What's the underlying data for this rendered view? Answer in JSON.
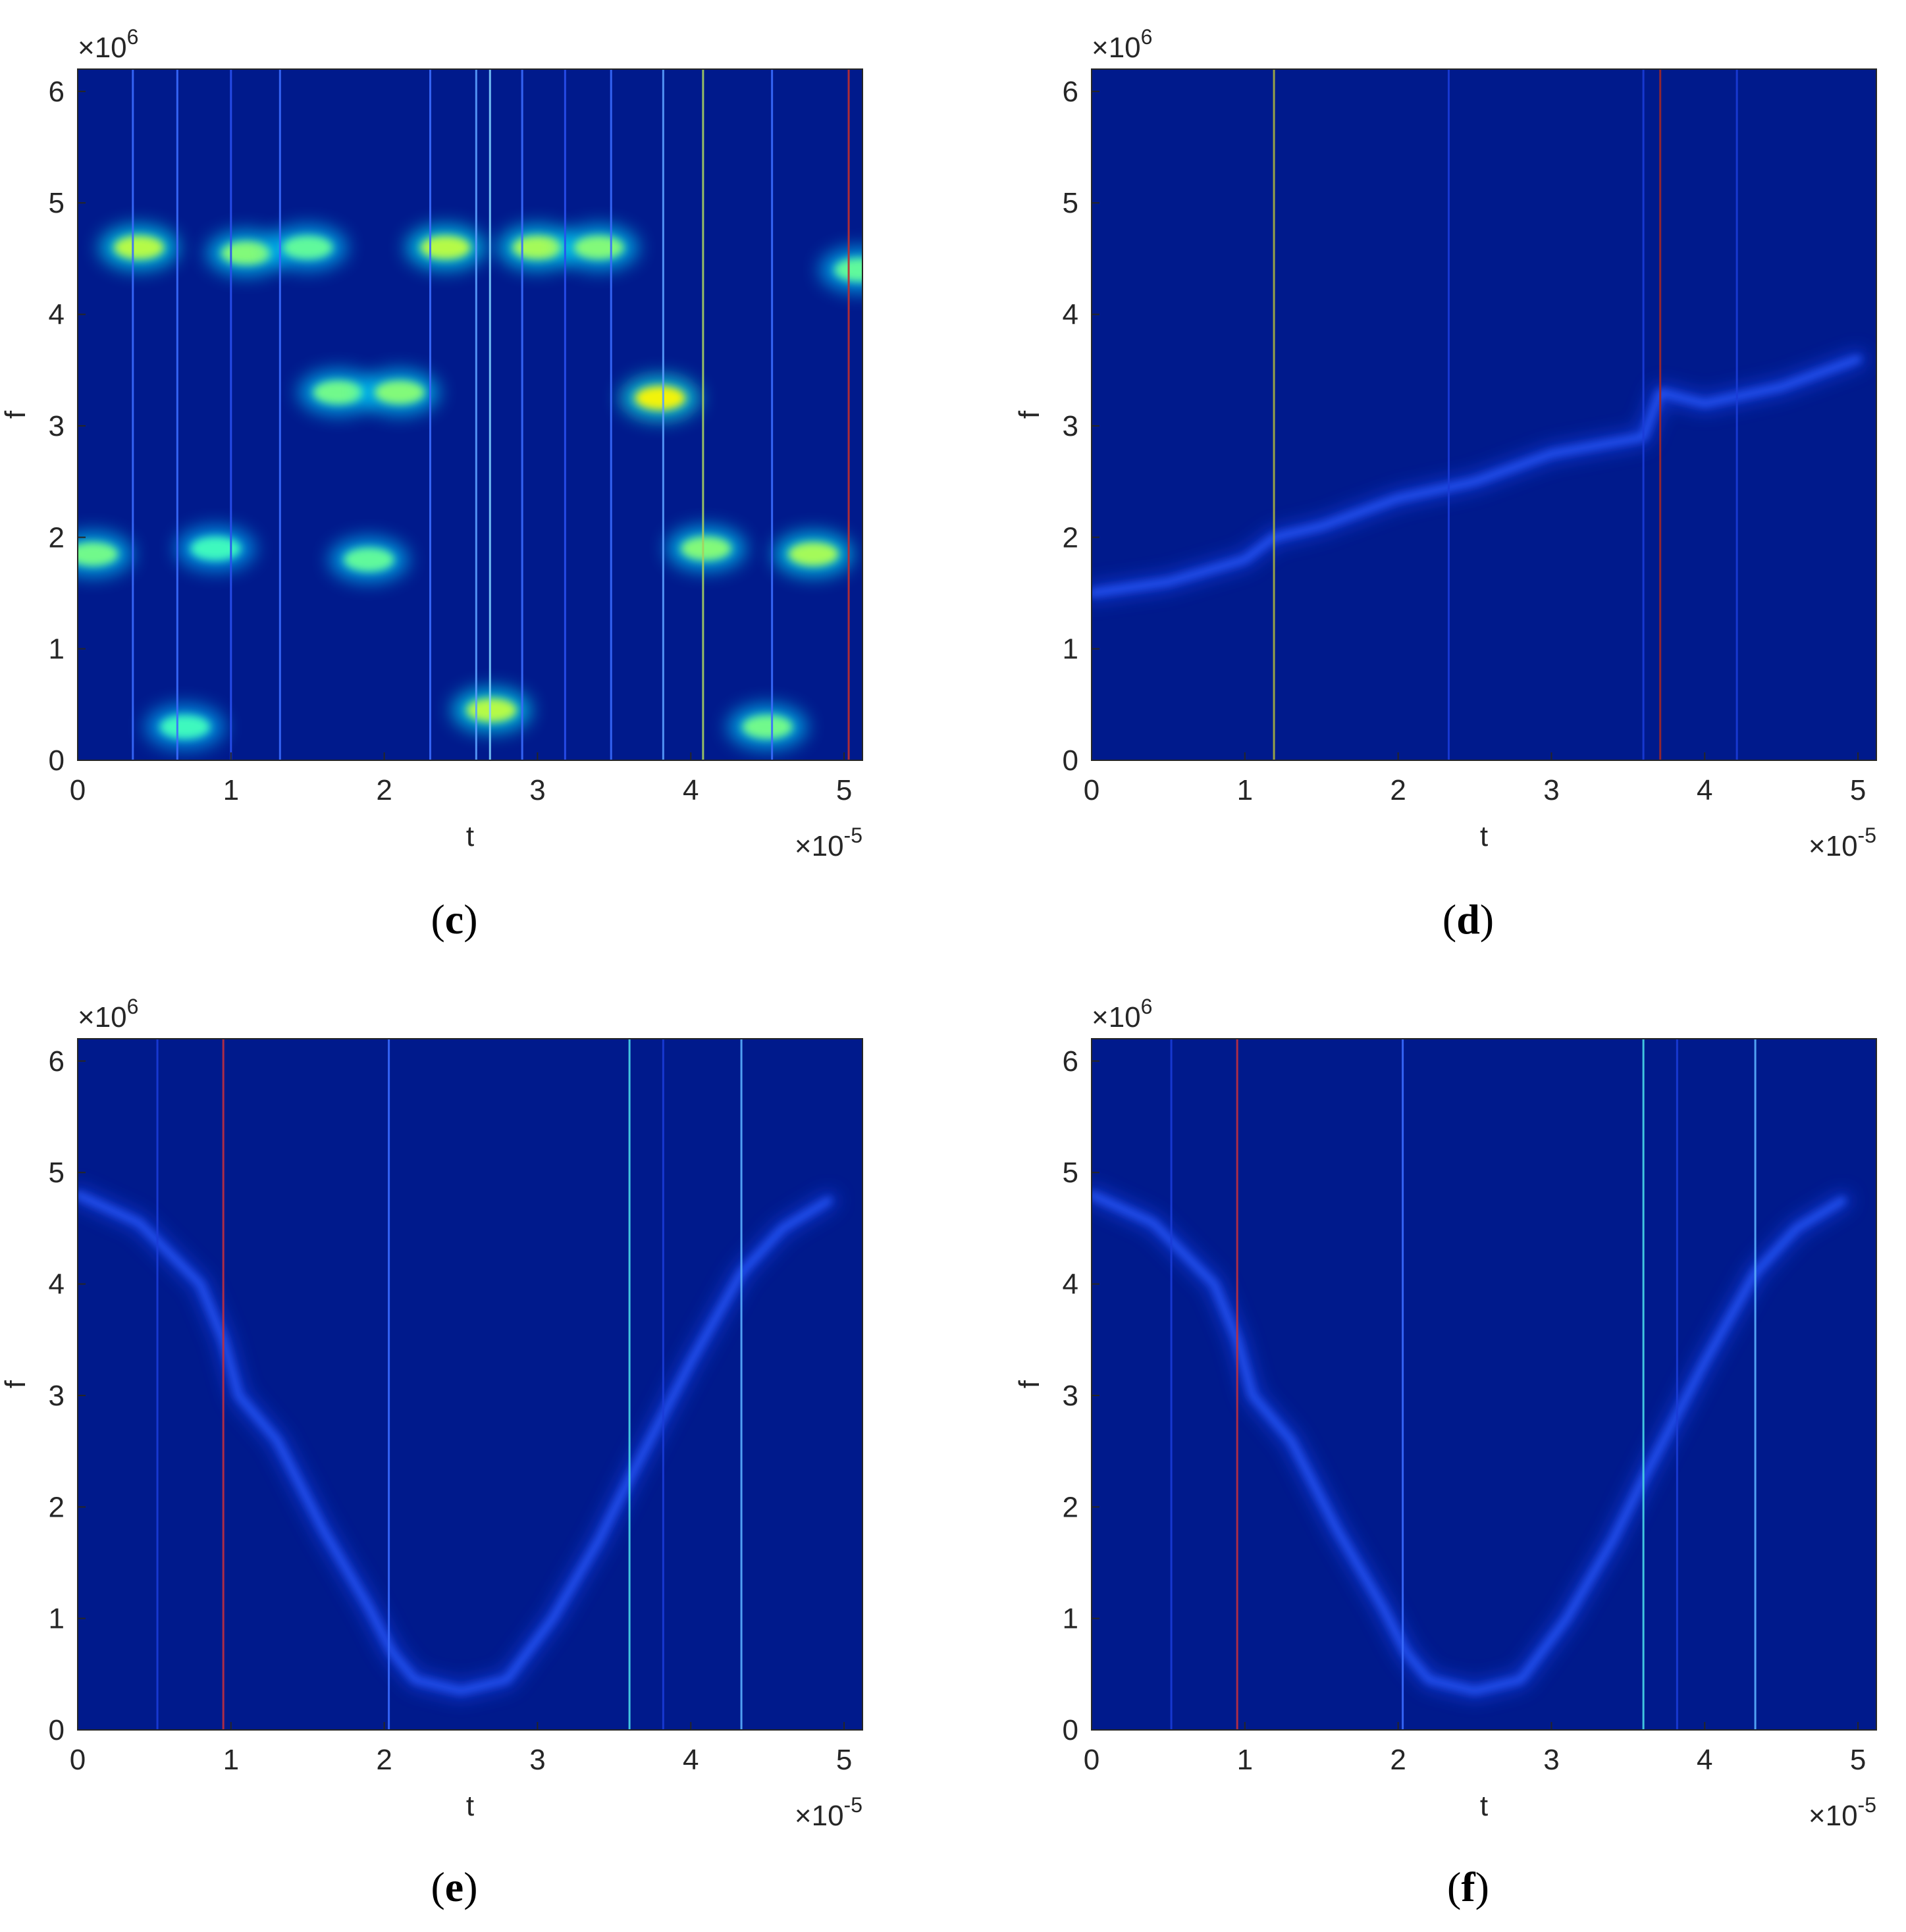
{
  "chart_data": [
    {
      "panel": "c",
      "caption": "(c)",
      "type": "heatmap",
      "colormap": "jet",
      "xlabel": "t",
      "ylabel": "f",
      "x_exponent": "×10",
      "x_exponent_power": "-5",
      "y_exponent": "×10",
      "y_exponent_power": "6",
      "xlim": [
        0,
        5.12
      ],
      "ylim": [
        0,
        6.2
      ],
      "xticks": [
        "0",
        "1",
        "2",
        "3",
        "4",
        "5"
      ],
      "yticks": [
        "0",
        "1",
        "2",
        "3",
        "4",
        "5",
        "6"
      ],
      "background_color": "#001a8c",
      "vertical_lines": [
        {
          "t": 0.36,
          "color": "#3a6cff"
        },
        {
          "t": 0.65,
          "color": "#3a6cff"
        },
        {
          "t": 1.0,
          "color": "#2a50f0"
        },
        {
          "t": 1.32,
          "color": "#3a6cff"
        },
        {
          "t": 2.3,
          "color": "#3a6cff"
        },
        {
          "t": 2.6,
          "color": "#5aa0ff"
        },
        {
          "t": 2.69,
          "color": "#7fd0ff"
        },
        {
          "t": 2.9,
          "color": "#3a6cff"
        },
        {
          "t": 3.18,
          "color": "#2a50f0"
        },
        {
          "t": 3.48,
          "color": "#3a6cff"
        },
        {
          "t": 3.82,
          "color": "#5aa0ff"
        },
        {
          "t": 4.08,
          "color": "#a8d060"
        },
        {
          "t": 4.53,
          "color": "#3a6cff"
        },
        {
          "t": 5.03,
          "color": "#c03030"
        }
      ],
      "blobs": [
        {
          "t": 0.4,
          "f": 4.6,
          "intensity": 0.75
        },
        {
          "t": 1.1,
          "f": 4.55,
          "intensity": 0.6
        },
        {
          "t": 1.5,
          "f": 4.6,
          "intensity": 0.5
        },
        {
          "t": 2.4,
          "f": 4.6,
          "intensity": 0.75
        },
        {
          "t": 3.0,
          "f": 4.6,
          "intensity": 0.7
        },
        {
          "t": 3.4,
          "f": 4.6,
          "intensity": 0.6
        },
        {
          "t": 1.7,
          "f": 3.3,
          "intensity": 0.55
        },
        {
          "t": 2.1,
          "f": 3.3,
          "intensity": 0.6
        },
        {
          "t": 3.8,
          "f": 3.25,
          "intensity": 0.95
        },
        {
          "t": 0.1,
          "f": 1.85,
          "intensity": 0.55
        },
        {
          "t": 0.9,
          "f": 1.9,
          "intensity": 0.4
        },
        {
          "t": 1.9,
          "f": 1.8,
          "intensity": 0.5
        },
        {
          "t": 4.1,
          "f": 1.9,
          "intensity": 0.6
        },
        {
          "t": 4.8,
          "f": 1.85,
          "intensity": 0.7
        },
        {
          "t": 2.7,
          "f": 0.45,
          "intensity": 0.75
        },
        {
          "t": 4.5,
          "f": 0.3,
          "intensity": 0.55
        },
        {
          "t": 0.7,
          "f": 0.3,
          "intensity": 0.4
        },
        {
          "t": 5.1,
          "f": 4.4,
          "intensity": 0.5
        }
      ],
      "ridges": []
    },
    {
      "panel": "d",
      "caption": "(d)",
      "type": "heatmap",
      "colormap": "jet",
      "xlabel": "t",
      "ylabel": "f",
      "x_exponent": "×10",
      "x_exponent_power": "-5",
      "y_exponent": "×10",
      "y_exponent_power": "6",
      "xlim": [
        0,
        5.12
      ],
      "ylim": [
        0,
        6.2
      ],
      "xticks": [
        "0",
        "1",
        "2",
        "3",
        "4",
        "5"
      ],
      "yticks": [
        "0",
        "1",
        "2",
        "3",
        "4",
        "5",
        "6"
      ],
      "background_color": "#001a8c",
      "vertical_lines": [
        {
          "t": 1.19,
          "color": "#a8b040"
        },
        {
          "t": 2.33,
          "color": "#1a3cd8"
        },
        {
          "t": 3.6,
          "color": "#1a3cd8"
        },
        {
          "t": 3.71,
          "color": "#a02828"
        },
        {
          "t": 4.21,
          "color": "#1a3cd8"
        }
      ],
      "blobs": [],
      "ridges": [
        {
          "points": [
            [
              0,
              1.5
            ],
            [
              0.5,
              1.6
            ],
            [
              1.0,
              1.8
            ],
            [
              1.19,
              2.0
            ],
            [
              1.5,
              2.1
            ],
            [
              2.0,
              2.35
            ],
            [
              2.5,
              2.5
            ],
            [
              3.0,
              2.75
            ],
            [
              3.6,
              2.9
            ],
            [
              3.71,
              3.3
            ],
            [
              4.0,
              3.2
            ],
            [
              4.5,
              3.35
            ],
            [
              5.0,
              3.6
            ]
          ]
        }
      ]
    },
    {
      "panel": "e",
      "caption": "(e)",
      "type": "heatmap",
      "colormap": "jet",
      "xlabel": "t",
      "ylabel": "f",
      "x_exponent": "×10",
      "x_exponent_power": "-5",
      "y_exponent": "×10",
      "y_exponent_power": "6",
      "xlim": [
        0,
        5.12
      ],
      "ylim": [
        0,
        6.2
      ],
      "xticks": [
        "0",
        "1",
        "2",
        "3",
        "4",
        "5"
      ],
      "yticks": [
        "0",
        "1",
        "2",
        "3",
        "4",
        "5",
        "6"
      ],
      "background_color": "#001a8c",
      "vertical_lines": [
        {
          "t": 0.52,
          "color": "#1a3cd8"
        },
        {
          "t": 0.95,
          "color": "#c03040"
        },
        {
          "t": 2.03,
          "color": "#3a6cff"
        },
        {
          "t": 3.6,
          "color": "#4ad8e8"
        },
        {
          "t": 3.82,
          "color": "#1a3cd8"
        },
        {
          "t": 4.33,
          "color": "#5ab0ff"
        }
      ],
      "blobs": [],
      "ridges": [
        {
          "points": [
            [
              0,
              4.8
            ],
            [
              0.4,
              4.55
            ],
            [
              0.8,
              4.0
            ],
            [
              0.95,
              3.5
            ],
            [
              1.05,
              3.0
            ],
            [
              1.3,
              2.6
            ],
            [
              1.6,
              1.8
            ],
            [
              1.9,
              1.1
            ],
            [
              2.05,
              0.7
            ],
            [
              2.2,
              0.45
            ],
            [
              2.5,
              0.35
            ],
            [
              2.8,
              0.45
            ],
            [
              3.1,
              1.0
            ],
            [
              3.4,
              1.7
            ],
            [
              3.6,
              2.25
            ],
            [
              4.0,
              3.3
            ],
            [
              4.33,
              4.1
            ],
            [
              4.6,
              4.5
            ],
            [
              4.9,
              4.75
            ]
          ]
        }
      ]
    },
    {
      "panel": "f",
      "caption": "(f)",
      "type": "heatmap",
      "colormap": "jet",
      "xlabel": "t",
      "ylabel": "f",
      "x_exponent": "×10",
      "x_exponent_power": "-5",
      "y_exponent": "×10",
      "y_exponent_power": "6",
      "xlim": [
        0,
        5.12
      ],
      "ylim": [
        0,
        6.2
      ],
      "xticks": [
        "0",
        "1",
        "2",
        "3",
        "4",
        "5"
      ],
      "yticks": [
        "0",
        "1",
        "2",
        "3",
        "4",
        "5",
        "6"
      ],
      "background_color": "#001a8c",
      "vertical_lines": [
        {
          "t": 0.52,
          "color": "#1a3cd8"
        },
        {
          "t": 0.95,
          "color": "#c03040"
        },
        {
          "t": 2.03,
          "color": "#3a6cff"
        },
        {
          "t": 3.6,
          "color": "#4ad8e8"
        },
        {
          "t": 3.82,
          "color": "#1a3cd8"
        },
        {
          "t": 4.33,
          "color": "#5ab0ff"
        }
      ],
      "blobs": [],
      "ridges": [
        {
          "points": [
            [
              0,
              4.8
            ],
            [
              0.4,
              4.55
            ],
            [
              0.8,
              4.0
            ],
            [
              0.95,
              3.5
            ],
            [
              1.05,
              3.0
            ],
            [
              1.3,
              2.6
            ],
            [
              1.6,
              1.8
            ],
            [
              1.9,
              1.1
            ],
            [
              2.05,
              0.7
            ],
            [
              2.2,
              0.45
            ],
            [
              2.5,
              0.35
            ],
            [
              2.8,
              0.45
            ],
            [
              3.1,
              1.0
            ],
            [
              3.4,
              1.7
            ],
            [
              3.6,
              2.25
            ],
            [
              4.0,
              3.3
            ],
            [
              4.33,
              4.1
            ],
            [
              4.6,
              4.5
            ],
            [
              4.9,
              4.75
            ]
          ]
        }
      ]
    }
  ]
}
